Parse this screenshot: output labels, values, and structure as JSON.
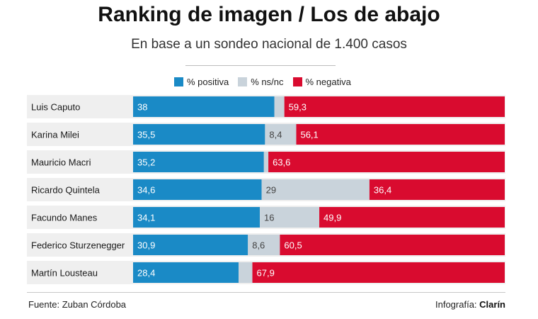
{
  "header": {
    "title": "Ranking de imagen / Los de abajo",
    "subtitle": "En base a un sondeo nacional de 1.400 casos"
  },
  "legend": {
    "positive": "% positiva",
    "nsnc": "% ns/nc",
    "negative": "% negativa"
  },
  "colors": {
    "positive": "#1a8ac6",
    "nsnc": "#c9d3db",
    "negative": "#d90b2f",
    "row_alt": "#efefef"
  },
  "footer": {
    "source": "Fuente: Zuban Córdoba",
    "credit_prefix": "Infografía: ",
    "credit_brand": "Clarín"
  },
  "chart_data": {
    "type": "bar",
    "stacked": true,
    "orientation": "horizontal",
    "title": "Ranking de imagen / Los de abajo",
    "subtitle": "En base a un sondeo nacional de 1.400 casos",
    "xlim": [
      0,
      100
    ],
    "categories": [
      "Luis Caputo",
      "Karina Milei",
      "Mauricio Macri",
      "Ricardo Quintela",
      "Facundo Manes",
      "Federico Sturzenegger",
      "Martín Lousteau"
    ],
    "series": [
      {
        "name": "% positiva",
        "values": [
          38,
          35.5,
          35.2,
          34.6,
          34.1,
          30.9,
          28.4
        ],
        "labels": [
          "38",
          "35,5",
          "35,2",
          "34,6",
          "34,1",
          "30,9",
          "28,4"
        ]
      },
      {
        "name": "% ns/nc",
        "values": [
          2.7,
          8.4,
          1.2,
          29,
          16,
          8.6,
          3.7
        ],
        "labels": [
          "",
          "8,4",
          "",
          "29",
          "16",
          "8,6",
          ""
        ]
      },
      {
        "name": "% negativa",
        "values": [
          59.3,
          56.1,
          63.6,
          36.4,
          49.9,
          60.5,
          67.9
        ],
        "labels": [
          "59,3",
          "56,1",
          "63,6",
          "36,4",
          "49,9",
          "60,5",
          "67,9"
        ]
      }
    ]
  }
}
